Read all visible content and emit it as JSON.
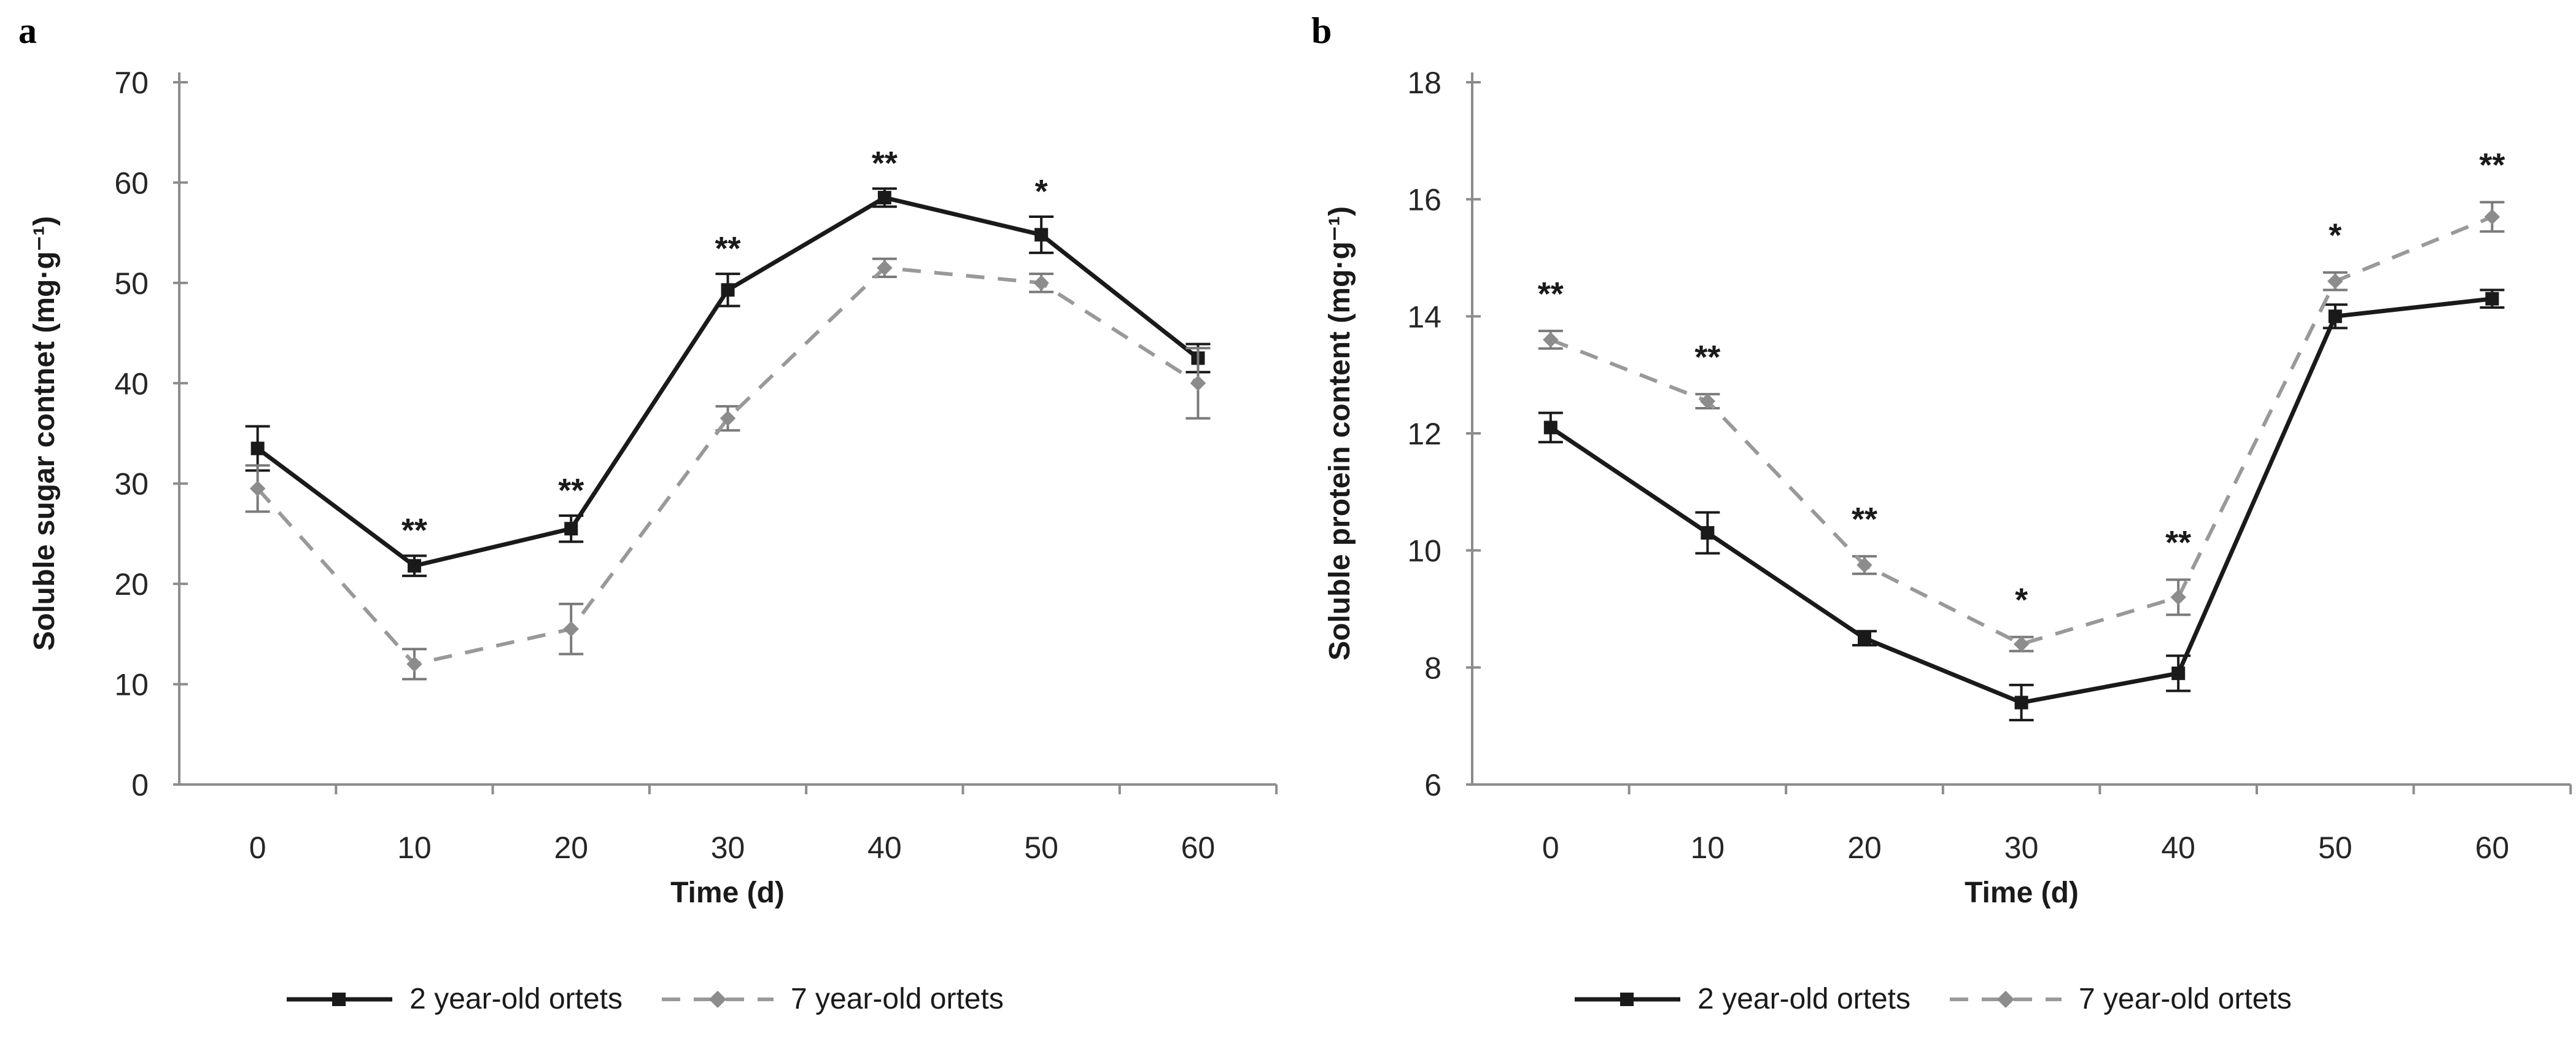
{
  "figure_title": "",
  "panels": [
    {
      "letter": "a",
      "ylabel": "Soluble sugar contnet (mg·g⁻¹)",
      "xlabel": "Time (d)"
    },
    {
      "letter": "b",
      "ylabel": "Soluble protein content (mg·g⁻¹)",
      "xlabel": "Time (d)"
    }
  ],
  "legend": {
    "series1_label": "2 year-old ortets",
    "series2_label": "7 year-old ortets"
  },
  "colors": {
    "series1": "#1a1a1a",
    "series2": "#999999",
    "series2_marker": "#8c8c8c",
    "error_bar_s1": "#1a1a1a",
    "error_bar_s2": "#7a7a7a",
    "axis": "#8c8c8c"
  },
  "chart_data": [
    {
      "type": "line",
      "title": "a",
      "xlabel": "Time (d)",
      "ylabel": "Soluble sugar contnet (mg·g⁻¹)",
      "categories": [
        0,
        10,
        20,
        30,
        40,
        50,
        60
      ],
      "ylim": [
        0,
        70
      ],
      "yticks": [
        0,
        10,
        20,
        30,
        40,
        50,
        60,
        70
      ],
      "grid": false,
      "legend_position": "bottom",
      "series": [
        {
          "name": "2 year-old ortets",
          "style": "solid-black-square",
          "values": [
            33.5,
            21.8,
            25.5,
            49.3,
            58.5,
            54.8,
            42.5
          ],
          "errors": [
            2.2,
            1.0,
            1.3,
            1.6,
            0.9,
            1.8,
            1.4
          ]
        },
        {
          "name": "7 year-old ortets",
          "style": "dashed-gray-diamond",
          "values": [
            29.5,
            12.0,
            15.5,
            36.5,
            51.5,
            50.0,
            40.0
          ],
          "errors": [
            2.3,
            1.5,
            2.5,
            1.2,
            0.9,
            0.9,
            3.5
          ]
        }
      ],
      "significance": [
        "",
        "**",
        "**",
        "**",
        "**",
        "*",
        ""
      ],
      "sig_offset_units": 3.5
    },
    {
      "type": "line",
      "title": "b",
      "xlabel": "Time (d)",
      "ylabel": "Soluble protein content (mg·g⁻¹)",
      "categories": [
        0,
        10,
        20,
        30,
        40,
        50,
        60
      ],
      "ylim": [
        6,
        18
      ],
      "yticks": [
        6,
        8,
        10,
        12,
        14,
        16,
        18
      ],
      "grid": false,
      "legend_position": "bottom",
      "series": [
        {
          "name": "2 year-old ortets",
          "style": "solid-black-square",
          "values": [
            12.1,
            10.3,
            8.5,
            7.4,
            7.9,
            14.0,
            14.3
          ],
          "errors": [
            0.25,
            0.35,
            0.12,
            0.3,
            0.3,
            0.2,
            0.15
          ]
        },
        {
          "name": "7 year-old ortets",
          "style": "dashed-gray-diamond",
          "values": [
            13.6,
            12.55,
            9.75,
            8.4,
            9.2,
            14.6,
            15.7
          ],
          "errors": [
            0.15,
            0.12,
            0.15,
            0.12,
            0.3,
            0.15,
            0.25
          ]
        }
      ],
      "significance": [
        "**",
        "**",
        "**",
        "*",
        "**",
        "*",
        "**"
      ],
      "sig_offset_units": 0.8
    }
  ]
}
